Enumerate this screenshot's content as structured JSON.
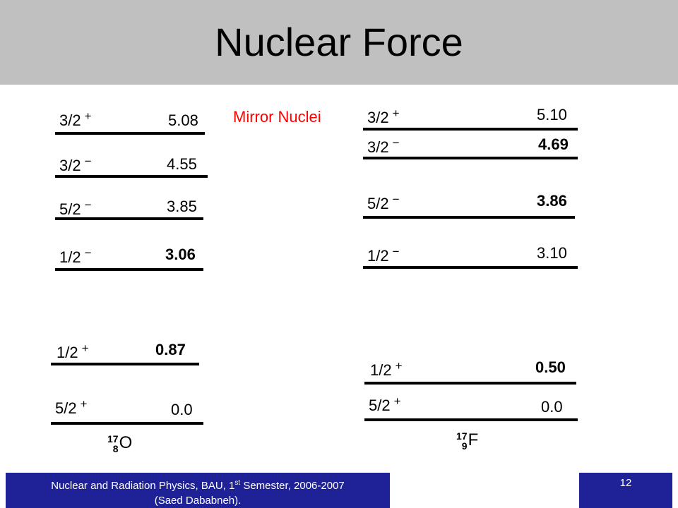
{
  "slide": {
    "title": "Nuclear Force",
    "annotation": "Mirror Nuclei",
    "footer_course": "Nuclear and Radiation Physics, BAU, 1",
    "footer_ordinal": "st",
    "footer_rest": " Semester, 2006-2007",
    "footer_author": "(Saed Dababneh).",
    "page_number": "12"
  },
  "nuclei": {
    "left": {
      "mass_number": "17",
      "atomic_number": "8",
      "symbol": "O",
      "levels": [
        {
          "spin": "3/2",
          "parity": "+",
          "energy": "5.08"
        },
        {
          "spin": "3/2",
          "parity": "−",
          "energy": "4.55"
        },
        {
          "spin": "5/2",
          "parity": "−",
          "energy": "3.85"
        },
        {
          "spin": "1/2",
          "parity": "−",
          "energy": "3.06"
        },
        {
          "spin": "1/2",
          "parity": "+",
          "energy": "0.87"
        },
        {
          "spin": "5/2",
          "parity": "+",
          "energy": "0.0"
        }
      ]
    },
    "right": {
      "mass_number": "17",
      "atomic_number": "9",
      "symbol": "F",
      "levels": [
        {
          "spin": "3/2",
          "parity": "+",
          "energy": "5.10"
        },
        {
          "spin": "3/2",
          "parity": "−",
          "energy": "4.69"
        },
        {
          "spin": "5/2",
          "parity": "−",
          "energy": "3.86"
        },
        {
          "spin": "1/2",
          "parity": "−",
          "energy": "3.10"
        },
        {
          "spin": "1/2",
          "parity": "+",
          "energy": "0.50"
        },
        {
          "spin": "5/2",
          "parity": "+",
          "energy": "0.0"
        }
      ]
    }
  }
}
